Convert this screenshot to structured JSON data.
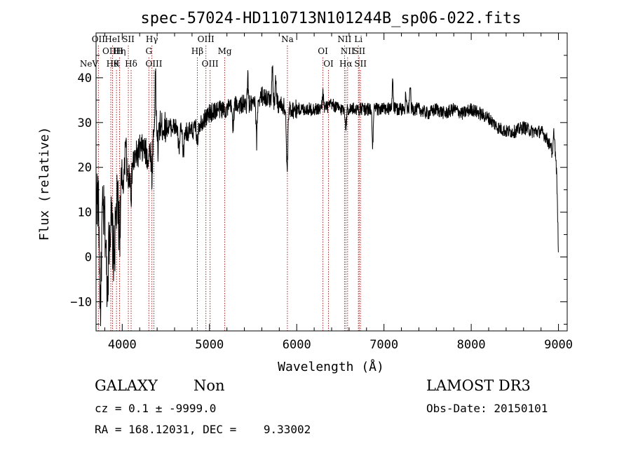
{
  "chart_data": {
    "type": "line",
    "title": "spec-57024-HD110713N101244B_sp06-022.fits",
    "xlabel": "Wavelength (Å)",
    "ylabel": "Flux (relative)",
    "xlim": [
      3700,
      9100
    ],
    "ylim": [
      -16.5,
      50
    ],
    "xticks": [
      4000,
      5000,
      6000,
      7000,
      8000,
      9000
    ],
    "yticks": [
      -10,
      0,
      10,
      20,
      30,
      40
    ],
    "grid": false,
    "line_color": "#000000",
    "marker_color": "#b22222",
    "spectrum_anchors": {
      "x": [
        3700,
        3740,
        3780,
        3820,
        3860,
        3900,
        3940,
        3980,
        4020,
        4060,
        4100,
        4150,
        4200,
        4250,
        4300,
        4350,
        4400,
        4450,
        4500,
        4600,
        4700,
        4800,
        4900,
        5000,
        5100,
        5200,
        5300,
        5400,
        5500,
        5600,
        5700,
        5800,
        5900,
        6000,
        6100,
        6200,
        6300,
        6400,
        6500,
        6600,
        6700,
        6800,
        6900,
        7000,
        7100,
        7200,
        7300,
        7400,
        7500,
        7600,
        7700,
        7800,
        7900,
        8000,
        8100,
        8200,
        8300,
        8400,
        8500,
        8600,
        8700,
        8800,
        8850,
        8900,
        8950,
        8980,
        9000
      ],
      "y": [
        14,
        12,
        10,
        6,
        8,
        10,
        12,
        14,
        18,
        17,
        20,
        22,
        24,
        24,
        22,
        27,
        30,
        29,
        29,
        29,
        28,
        28,
        30,
        32,
        33,
        33,
        34,
        34,
        34,
        36,
        35,
        34,
        33,
        33,
        33,
        33,
        33,
        34,
        33,
        33,
        33,
        33,
        33,
        33,
        33,
        33,
        33,
        33,
        32,
        33,
        32,
        33,
        32,
        33,
        32,
        31,
        29,
        28,
        28,
        29,
        28,
        28,
        27,
        25,
        28,
        18,
        1
      ]
    },
    "spectrum_features": [
      {
        "x": 3750,
        "depth": -22,
        "width": 14
      },
      {
        "x": 3830,
        "depth": -12,
        "width": 18
      },
      {
        "x": 3905,
        "depth": -10,
        "width": 20
      },
      {
        "x": 3968,
        "depth": -8,
        "width": 12
      },
      {
        "x": 4040,
        "depth": 10,
        "width": 10
      },
      {
        "x": 4102,
        "depth": -6,
        "width": 10
      },
      {
        "x": 4340,
        "depth": -8,
        "width": 10
      },
      {
        "x": 4380,
        "depth": 12,
        "width": 8
      },
      {
        "x": 4410,
        "depth": -6,
        "width": 10
      },
      {
        "x": 4650,
        "depth": -5,
        "width": 12
      },
      {
        "x": 4700,
        "depth": -5,
        "width": 12
      },
      {
        "x": 4861,
        "depth": -4,
        "width": 10
      },
      {
        "x": 5270,
        "depth": -4,
        "width": 12
      },
      {
        "x": 5440,
        "depth": 6,
        "width": 8
      },
      {
        "x": 5540,
        "depth": -9,
        "width": 10
      },
      {
        "x": 5720,
        "depth": 8,
        "width": 10
      },
      {
        "x": 5760,
        "depth": 5,
        "width": 10
      },
      {
        "x": 5890,
        "depth": -14,
        "width": 12
      },
      {
        "x": 6300,
        "depth": 4,
        "width": 10
      },
      {
        "x": 6563,
        "depth": -4,
        "width": 10
      },
      {
        "x": 6870,
        "depth": -8,
        "width": 10
      },
      {
        "x": 7100,
        "depth": 7,
        "width": 8
      },
      {
        "x": 7250,
        "depth": 4,
        "width": 8
      },
      {
        "x": 7300,
        "depth": 6,
        "width": 8
      },
      {
        "x": 8930,
        "depth": -5,
        "width": 10
      }
    ],
    "noise": [
      {
        "x_max": 4000,
        "amplitude": 7
      },
      {
        "x_max": 4500,
        "amplitude": 3.5
      },
      {
        "x_max": 6000,
        "amplitude": 2.2
      },
      {
        "x_max": 9100,
        "amplitude": 1.5
      }
    ],
    "line_markers": [
      {
        "x": 3426,
        "label": "NeV",
        "row": 2
      },
      {
        "x": 3727,
        "label": "OII",
        "row": 0
      },
      {
        "x": 3869,
        "label": "OIII",
        "row": 1
      },
      {
        "x": 3889,
        "label": "Hθ",
        "row": 2
      },
      {
        "x": 3889,
        "label": "HeI",
        "row": 0
      },
      {
        "x": 3970,
        "label": "Hη",
        "row": 1
      },
      {
        "x": 3934,
        "label": "K",
        "row": 2
      },
      {
        "x": 3969,
        "label": "H",
        "row": 1
      },
      {
        "x": 4070,
        "label": "SII",
        "row": 0
      },
      {
        "x": 4102,
        "label": "Hδ",
        "row": 2
      },
      {
        "x": 4340,
        "label": "Hγ",
        "row": 0
      },
      {
        "x": 4305,
        "label": "G",
        "row": 1
      },
      {
        "x": 4363,
        "label": "OIII",
        "row": 2
      },
      {
        "x": 4861,
        "label": "Hβ",
        "row": 1
      },
      {
        "x": 4959,
        "label": "OIII",
        "row": 0
      },
      {
        "x": 5007,
        "label": "OIII",
        "row": 2
      },
      {
        "x": 5175,
        "label": "Mg",
        "row": 1
      },
      {
        "x": 5893,
        "label": "Na",
        "row": 0
      },
      {
        "x": 6300,
        "label": "OI",
        "row": 1
      },
      {
        "x": 6364,
        "label": "OI",
        "row": 2
      },
      {
        "x": 6548,
        "label": "NII",
        "row": 0
      },
      {
        "x": 6583,
        "label": "NII",
        "row": 1
      },
      {
        "x": 6563,
        "label": "Hα",
        "row": 2
      },
      {
        "x": 6707,
        "label": "Li",
        "row": 0
      },
      {
        "x": 6716,
        "label": "SII",
        "row": 1
      },
      {
        "x": 6731,
        "label": "SII",
        "row": 2
      }
    ]
  },
  "info": {
    "class_label": "GALAXY",
    "subclass_label": "Non",
    "survey_label": "LAMOST DR3",
    "cz_line": "cz = 0.1 ± -9999.0",
    "obs_date_line": "Obs-Date: 20150101",
    "coords_line": "RA = 168.12031, DEC =    9.33002"
  }
}
